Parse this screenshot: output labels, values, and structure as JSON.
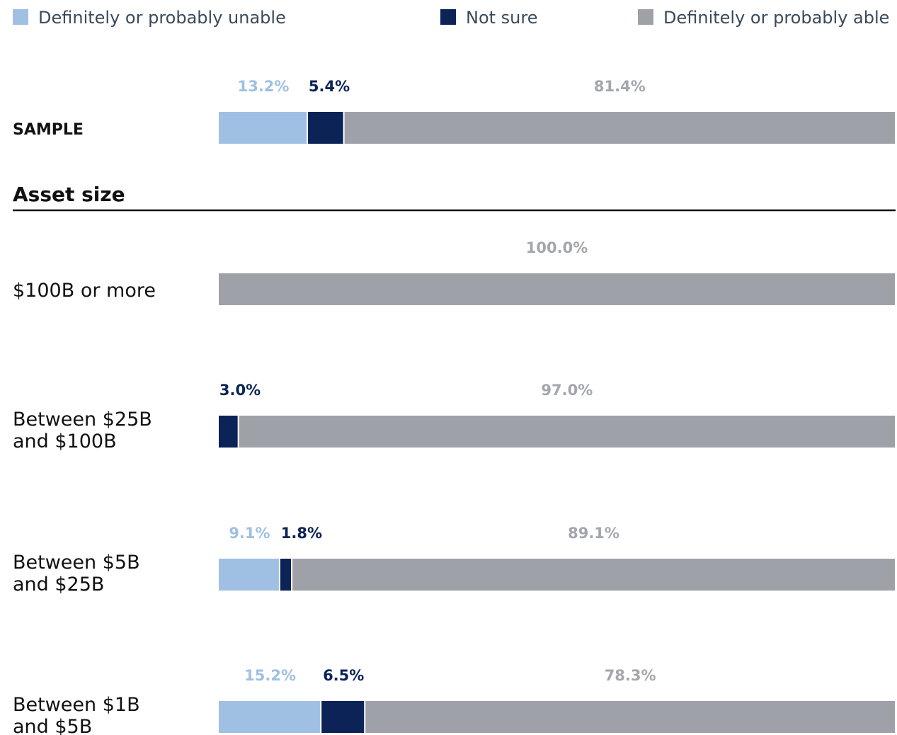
{
  "chart_data": {
    "type": "bar",
    "orientation": "horizontal",
    "stacked": true,
    "normalized": true,
    "unit": "%",
    "series": [
      {
        "name": "Definitely or probably unable",
        "color": "#9fc0e3",
        "label_color": "#9fc0e3"
      },
      {
        "name": "Not sure",
        "color": "#0b2356",
        "label_color": "#0b2356"
      },
      {
        "name": "Definitely or probably able",
        "color": "#9ea1a8",
        "label_color": "#a3a6ad"
      }
    ],
    "legend_position": "top",
    "grid": false,
    "sample": {
      "label": "SAMPLE",
      "values": [
        13.2,
        5.4,
        81.4
      ],
      "value_labels": [
        "13.2%",
        "5.4%",
        "81.4%"
      ]
    },
    "section_title": "Asset size",
    "rows": [
      {
        "label_lines": [
          "$100B or more"
        ],
        "values": [
          0,
          0,
          100.0
        ],
        "value_labels": [
          "",
          "",
          "100.0%"
        ]
      },
      {
        "label_lines": [
          "Between $25B",
          "and $100B"
        ],
        "values": [
          0,
          3.0,
          97.0
        ],
        "value_labels": [
          "",
          "3.0%",
          "97.0%"
        ]
      },
      {
        "label_lines": [
          "Between $5B",
          "and $25B"
        ],
        "values": [
          9.1,
          1.8,
          89.1
        ],
        "value_labels": [
          "9.1%",
          "1.8%",
          "89.1%"
        ]
      },
      {
        "label_lines": [
          "Between $1B",
          "and $5B"
        ],
        "values": [
          15.2,
          6.5,
          78.3
        ],
        "value_labels": [
          "15.2%",
          "6.5%",
          "78.3%"
        ]
      }
    ]
  }
}
